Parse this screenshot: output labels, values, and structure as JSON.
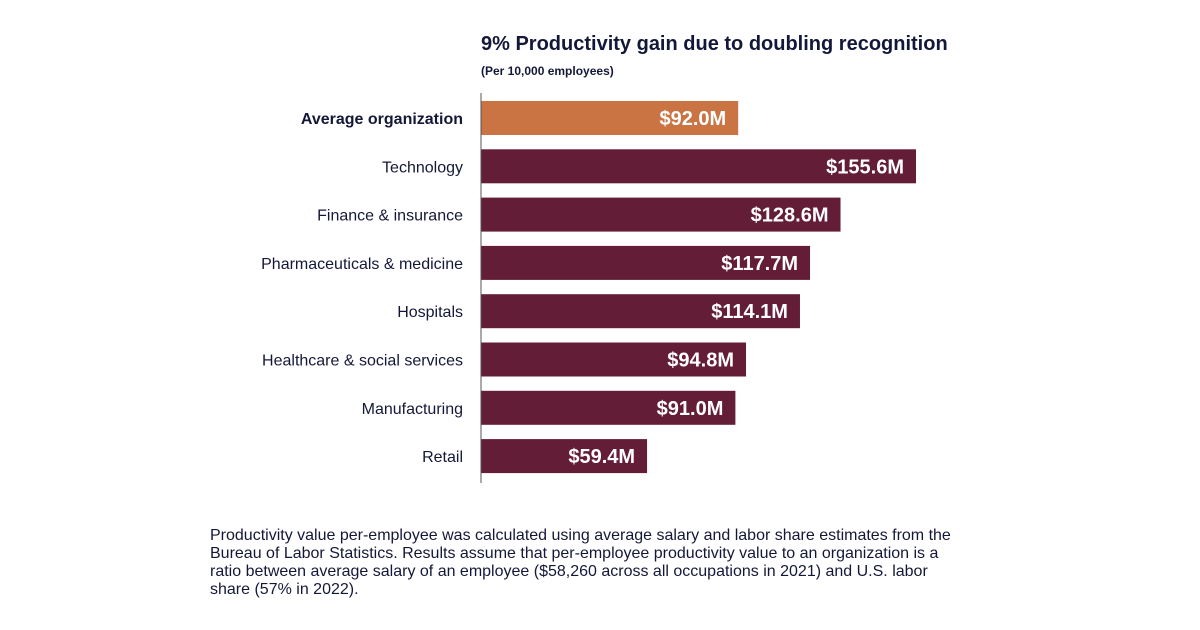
{
  "chart_data": {
    "type": "bar",
    "orientation": "horizontal",
    "title": "9% Productivity gain due to doubling recognition",
    "subtitle": "(Per 10,000 employees)",
    "categories": [
      "Average organization",
      "Technology",
      "Finance & insurance",
      "Pharmaceuticals & medicine",
      "Hospitals",
      "Healthcare & social services",
      "Manufacturing",
      "Retail"
    ],
    "values": [
      92.0,
      155.6,
      128.6,
      117.7,
      114.1,
      94.8,
      91.0,
      59.4
    ],
    "data_labels": [
      "$92.0M",
      "$155.6M",
      "$128.6M",
      "$117.7M",
      "$114.1M",
      "$94.8M",
      "$91.0M",
      "$59.4M"
    ],
    "highlight_category": "Average organization",
    "colors": {
      "highlight": "#C97442",
      "default": "#641D37",
      "text": "#141838",
      "label_text": "#ffffff"
    },
    "xlim": [
      0,
      160
    ],
    "grid": false
  },
  "footnote": "Productivity value per-employee was calculated using average salary and labor share estimates from the Bureau of Labor Statistics. Results assume that per-employee productivity value to an organization is a ratio between average salary of an employee ($58,260 across all occupations in 2021) and U.S. labor share (57% in 2022)."
}
